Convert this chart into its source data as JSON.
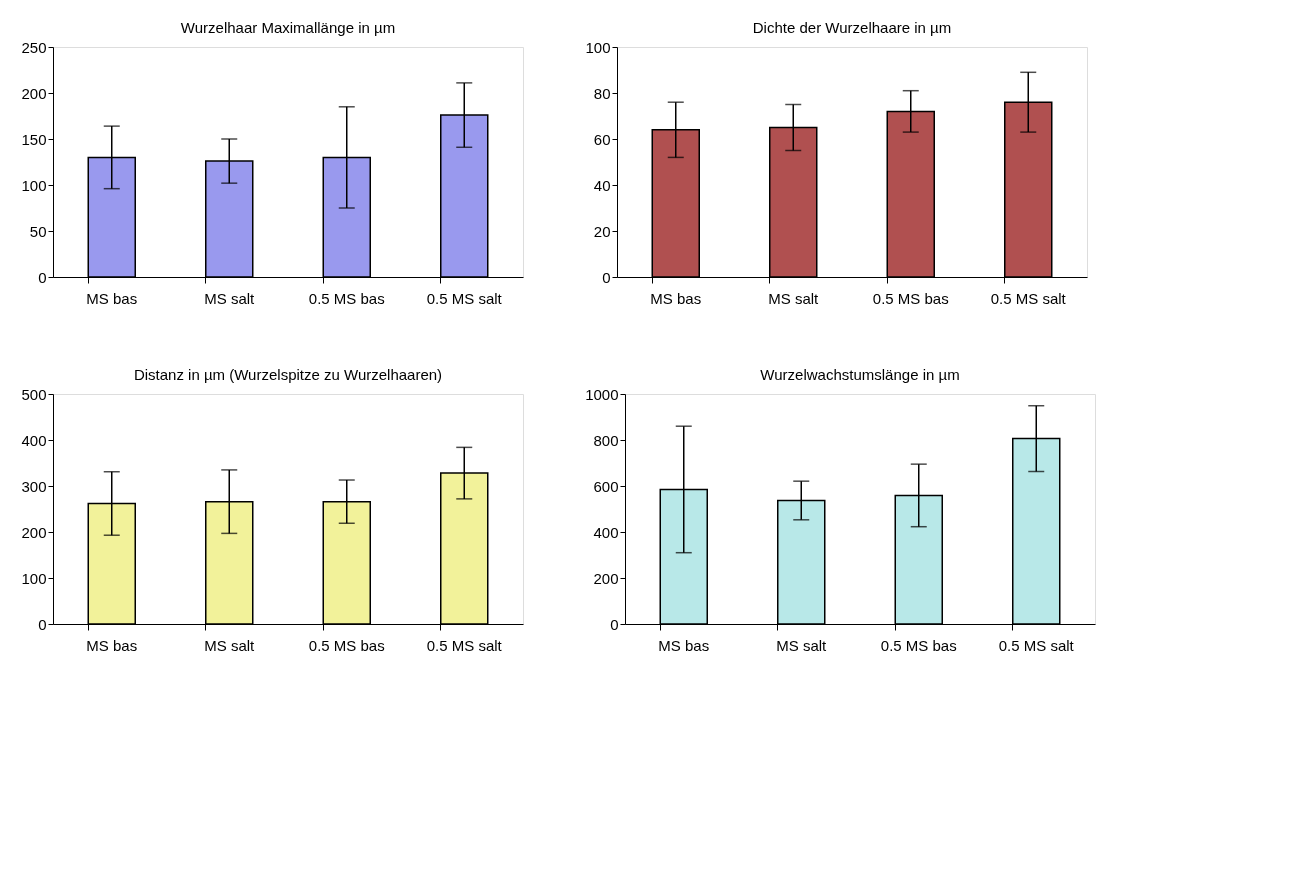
{
  "chart_data": [
    {
      "type": "bar",
      "title": "Wurzelhaar Maximallänge in µm",
      "categories": [
        "MS bas",
        "MS salt",
        "0.5 MS bas",
        "0.5 MS salt"
      ],
      "values": [
        130,
        126,
        130,
        176
      ],
      "errors": [
        34,
        24,
        55,
        35
      ],
      "color": "#9999ee",
      "ylim": [
        0,
        250
      ],
      "yticks": [
        0,
        50,
        100,
        150,
        200,
        250
      ],
      "grid": false
    },
    {
      "type": "bar",
      "title": "Dichte der Wurzelhaare in µm",
      "categories": [
        "MS bas",
        "MS salt",
        "0.5 MS bas",
        "0.5 MS salt"
      ],
      "values": [
        64,
        65,
        72,
        76
      ],
      "errors": [
        12,
        10,
        9,
        13
      ],
      "color": "#b05050",
      "ylim": [
        0,
        100
      ],
      "yticks": [
        0,
        20,
        40,
        60,
        80,
        100
      ],
      "grid": false
    },
    {
      "type": "bar",
      "title": "Distanz  in µm (Wurzelspitze zu Wurzelhaaren)",
      "categories": [
        "MS bas",
        "MS salt",
        "0.5 MS bas",
        "0.5 MS salt"
      ],
      "values": [
        262,
        266,
        266,
        328
      ],
      "errors": [
        69,
        69,
        47,
        56
      ],
      "color": "#f2f29a",
      "ylim": [
        0,
        500
      ],
      "yticks": [
        0,
        100,
        200,
        300,
        400,
        500
      ],
      "grid": false
    },
    {
      "type": "bar",
      "title": "Wurzelwachstumslänge in µm",
      "categories": [
        "MS bas",
        "MS salt",
        "0.5 MS bas",
        "0.5 MS salt"
      ],
      "values": [
        585,
        537,
        559,
        806
      ],
      "errors": [
        275,
        84,
        136,
        143
      ],
      "color": "#b8e8e8",
      "ylim": [
        0,
        1000
      ],
      "yticks": [
        0,
        200,
        400,
        600,
        800,
        1000
      ],
      "grid": false
    }
  ]
}
